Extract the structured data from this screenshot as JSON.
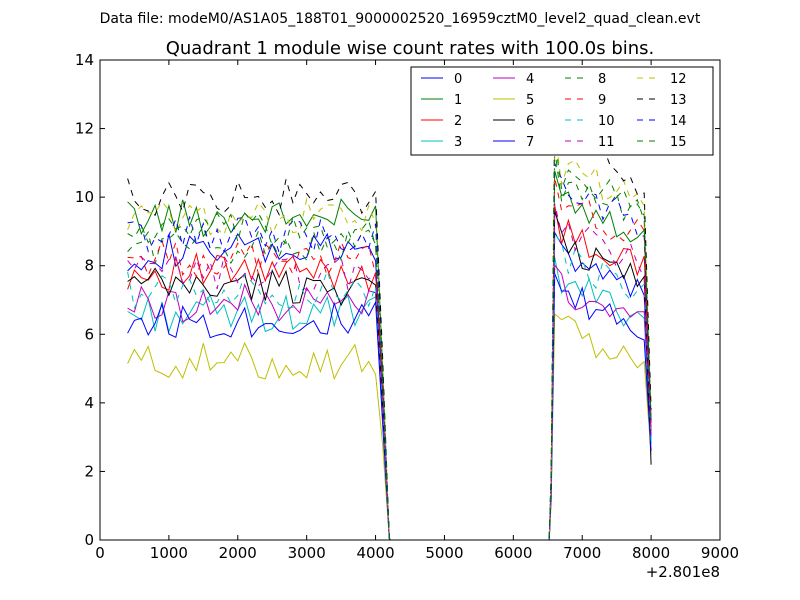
{
  "chart_data": {
    "type": "line",
    "suptitle": "Data file: modeM0/AS1A05_188T01_9000002520_16959cztM0_level2_quad_clean.evt",
    "title": "Quadrant 1 module wise count rates with 100.0s bins.",
    "xlabel": "",
    "ylabel": "",
    "x_offset_label": "+2.801e8",
    "xlim": [
      0,
      9000
    ],
    "ylim": [
      0,
      14
    ],
    "xticks": [
      0,
      1000,
      2000,
      3000,
      4000,
      5000,
      6000,
      7000,
      8000,
      9000
    ],
    "yticks": [
      0,
      2,
      4,
      6,
      8,
      10,
      12,
      14
    ],
    "legend_position": "top-right",
    "colors": {
      "blue": "#0000ff",
      "green": "#007f00",
      "red": "#ff0000",
      "cyan": "#00bfbf",
      "magenta": "#bf00bf",
      "olive": "#bfbf00",
      "black": "#000000"
    },
    "segments": {
      "first": {
        "x_start": 400,
        "x_end": 4100,
        "x_step": 100
      },
      "drop": [
        4200,
        4220
      ],
      "gap": [
        4220,
        6520
      ],
      "second": {
        "x_start": 6600,
        "x_end": 8000,
        "x_step": 100
      }
    },
    "series": [
      {
        "name": "0",
        "color": "blue",
        "dash": "solid",
        "level1": 8.4,
        "level2": 8.4,
        "end_value": 3.0
      },
      {
        "name": "1",
        "color": "green",
        "dash": "solid",
        "level1": 9.4,
        "level2": 10.1,
        "end_value": 3.5
      },
      {
        "name": "2",
        "color": "red",
        "dash": "solid",
        "level1": 7.8,
        "level2": 9.0,
        "end_value": 3.2
      },
      {
        "name": "3",
        "color": "cyan",
        "dash": "solid",
        "level1": 6.6,
        "level2": 7.6,
        "end_value": 2.8
      },
      {
        "name": "4",
        "color": "magenta",
        "dash": "solid",
        "level1": 6.9,
        "level2": 7.4,
        "end_value": 3.0
      },
      {
        "name": "5",
        "color": "olive",
        "dash": "solid",
        "level1": 5.2,
        "level2": 6.2,
        "end_value": 2.5
      },
      {
        "name": "6",
        "color": "black",
        "dash": "solid",
        "level1": 7.4,
        "level2": 8.7,
        "end_value": 2.2
      },
      {
        "name": "7",
        "color": "blue",
        "dash": "solid",
        "level1": 6.4,
        "level2": 7.2,
        "end_value": 2.6
      },
      {
        "name": "8",
        "color": "green",
        "dash": "dashed",
        "level1": 8.6,
        "level2": 10.4,
        "end_value": 3.4
      },
      {
        "name": "9",
        "color": "red",
        "dash": "dashed",
        "level1": 8.2,
        "level2": 9.9,
        "end_value": 3.3
      },
      {
        "name": "10",
        "color": "cyan",
        "dash": "dashed",
        "level1": 7.3,
        "level2": 8.3,
        "end_value": 2.9
      },
      {
        "name": "11",
        "color": "magenta",
        "dash": "dashed",
        "level1": 7.8,
        "level2": 9.1,
        "end_value": 3.1
      },
      {
        "name": "12",
        "color": "olive",
        "dash": "dashed",
        "level1": 9.4,
        "level2": 10.9,
        "end_value": 3.6
      },
      {
        "name": "13",
        "color": "black",
        "dash": "dashed",
        "level1": 10.0,
        "level2": 11.6,
        "end_value": 3.8
      },
      {
        "name": "14",
        "color": "blue",
        "dash": "dashed",
        "level1": 8.9,
        "level2": 10.3,
        "end_value": 3.4
      },
      {
        "name": "15",
        "color": "green",
        "dash": "dashed",
        "level1": 9.0,
        "level2": 10.7,
        "end_value": 3.5
      }
    ]
  }
}
